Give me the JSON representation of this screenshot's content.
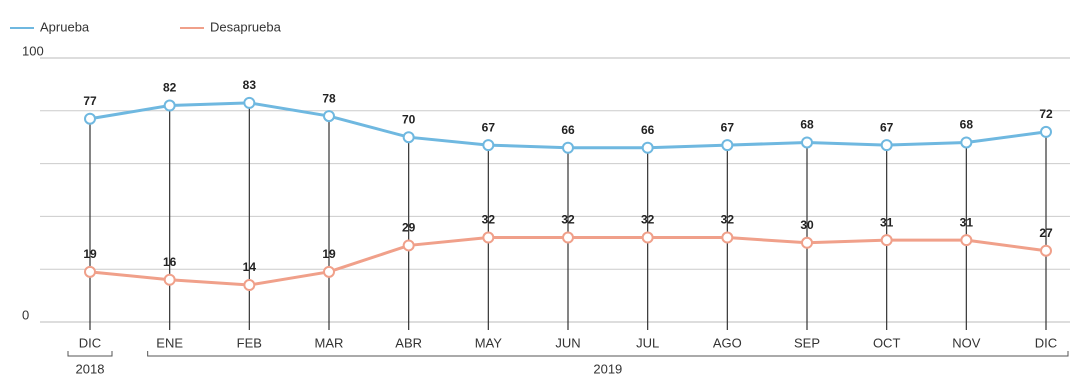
{
  "chart_data": {
    "type": "line",
    "categories": [
      "DIC",
      "ENE",
      "FEB",
      "MAR",
      "ABR",
      "MAY",
      "JUN",
      "JUL",
      "AGO",
      "SEP",
      "OCT",
      "NOV",
      "DIC"
    ],
    "groups": [
      {
        "label": "2018",
        "start": 0,
        "end": 0
      },
      {
        "label": "2019",
        "start": 1,
        "end": 12
      }
    ],
    "series": [
      {
        "name": "Aprueba",
        "color": "#6fb8e0",
        "values": [
          77,
          82,
          83,
          78,
          70,
          67,
          66,
          66,
          67,
          68,
          67,
          68,
          72
        ]
      },
      {
        "name": "Desaprueba",
        "color": "#f0a08a",
        "values": [
          19,
          16,
          14,
          19,
          29,
          32,
          32,
          32,
          32,
          30,
          31,
          31,
          27
        ]
      }
    ],
    "ylim": [
      0,
      100
    ],
    "yticks": [
      0,
      100
    ],
    "ygrid": [
      20,
      40,
      60,
      80
    ],
    "grid": true
  }
}
